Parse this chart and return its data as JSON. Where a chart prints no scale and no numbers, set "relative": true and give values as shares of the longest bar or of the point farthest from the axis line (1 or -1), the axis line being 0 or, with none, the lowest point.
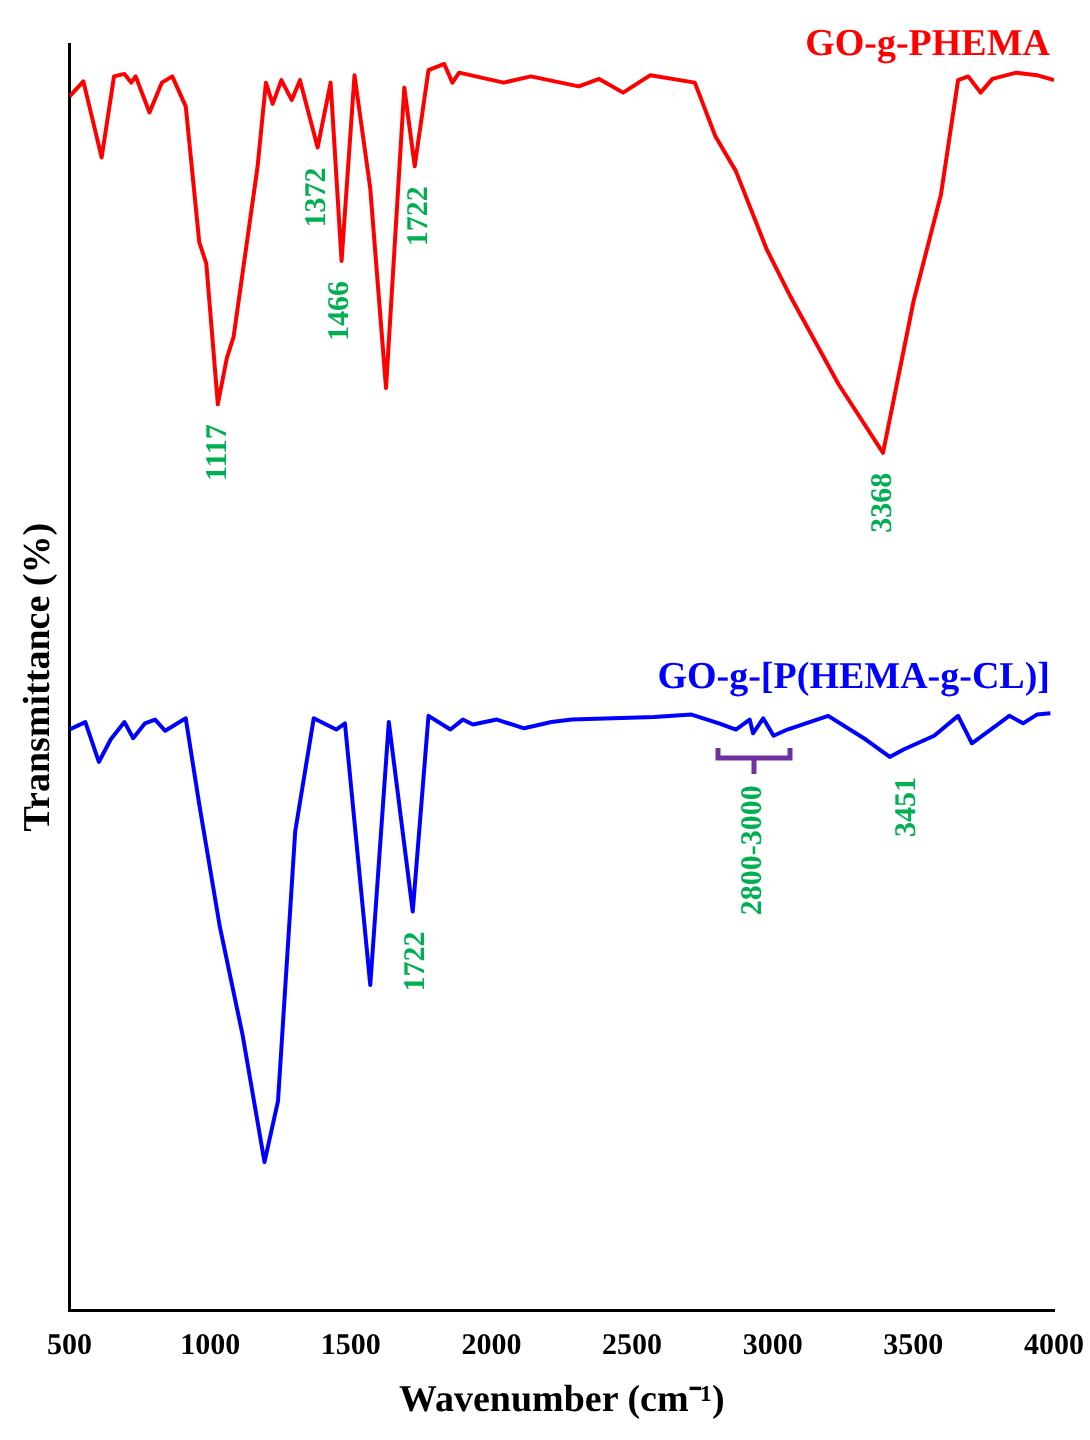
{
  "chart_data": {
    "type": "line",
    "relative": true,
    "xlabel": "Wavenumber (cm⁻¹)",
    "ylabel": "Transmittance (%)",
    "xlim": [
      500,
      4000
    ],
    "xticks": [
      500,
      1000,
      1500,
      2000,
      2500,
      3000,
      3500,
      4000
    ],
    "grid": false,
    "legend": false,
    "marker": "none",
    "line_style": "solid",
    "series": [
      {
        "name": "GO-g-PHEMA",
        "color": "#ff0000",
        "x": [
          500,
          549,
          614,
          658,
          695,
          719,
          735,
          784,
          828,
          865,
          913,
          961,
          986,
          1027,
          1059,
          1083,
          1168,
          1198,
          1222,
          1253,
          1290,
          1319,
          1382,
          1428,
          1467,
          1513,
          1569,
          1625,
          1690,
          1727,
          1776,
          1832,
          1861,
          1885,
          2043,
          2140,
          2310,
          2383,
          2468,
          2565,
          2723,
          2796,
          2869,
          2979,
          3064,
          3234,
          3392,
          3501,
          3598,
          3659,
          3695,
          3739,
          3781,
          3866,
          3939,
          4000
        ],
        "values": [
          0.974,
          0.986,
          0.925,
          0.99,
          0.992,
          0.985,
          0.99,
          0.961,
          0.985,
          0.99,
          0.966,
          0.857,
          0.84,
          0.727,
          0.764,
          0.781,
          0.917,
          0.985,
          0.968,
          0.987,
          0.971,
          0.987,
          0.933,
          0.985,
          0.842,
          0.991,
          0.9,
          0.74,
          0.981,
          0.918,
          0.995,
          1,
          0.985,
          0.993,
          0.985,
          0.99,
          0.982,
          0.988,
          0.977,
          0.991,
          0.985,
          0.942,
          0.914,
          0.851,
          0.813,
          0.743,
          0.688,
          0.81,
          0.895,
          0.987,
          0.99,
          0.977,
          0.988,
          0.993,
          0.991,
          0.987
        ]
      },
      {
        "name": "GO-g-[P(HEMA-g-CL)]",
        "color": "#0000ff",
        "x": [
          500,
          556,
          604,
          646,
          695,
          726,
          768,
          804,
          840,
          913,
          961,
          1034,
          1115,
          1193,
          1241,
          1302,
          1368,
          1448,
          1479,
          1569,
          1635,
          1720,
          1776,
          1854,
          1898,
          1934,
          2019,
          2116,
          2213,
          2286,
          2578,
          2711,
          2809,
          2869,
          2918,
          2930,
          2966,
          3003,
          3052,
          3197,
          3331,
          3416,
          3465,
          3574,
          3659,
          3708,
          3793,
          3841,
          3890,
          3939,
          3987
        ],
        "values": [
          0.466,
          0.472,
          0.44,
          0.458,
          0.472,
          0.459,
          0.471,
          0.474,
          0.465,
          0.475,
          0.406,
          0.308,
          0.221,
          0.119,
          0.168,
          0.384,
          0.475,
          0.466,
          0.471,
          0.261,
          0.472,
          0.32,
          0.477,
          0.466,
          0.474,
          0.47,
          0.474,
          0.467,
          0.472,
          0.474,
          0.476,
          0.478,
          0.471,
          0.466,
          0.474,
          0.463,
          0.475,
          0.461,
          0.466,
          0.477,
          0.458,
          0.444,
          0.45,
          0.461,
          0.477,
          0.455,
          0.469,
          0.477,
          0.471,
          0.478,
          0.479
        ]
      }
    ],
    "annotations": [
      {
        "text": "1117",
        "x": 1027,
        "y": 0.727
      },
      {
        "text": "1372",
        "x": 1382,
        "y": 0.933
      },
      {
        "text": "1466",
        "x": 1462,
        "y": 0.842
      },
      {
        "text": "1722",
        "x": 1744,
        "y": 0.918
      },
      {
        "text": "3368",
        "x": 3392,
        "y": 0.688
      },
      {
        "text": "1722",
        "x": 1732,
        "y": 0.32
      },
      {
        "text": "3451",
        "x": 3477,
        "y": 0.444
      },
      {
        "text": "2800-3000",
        "x": 2930,
        "y": 0.463
      }
    ]
  }
}
